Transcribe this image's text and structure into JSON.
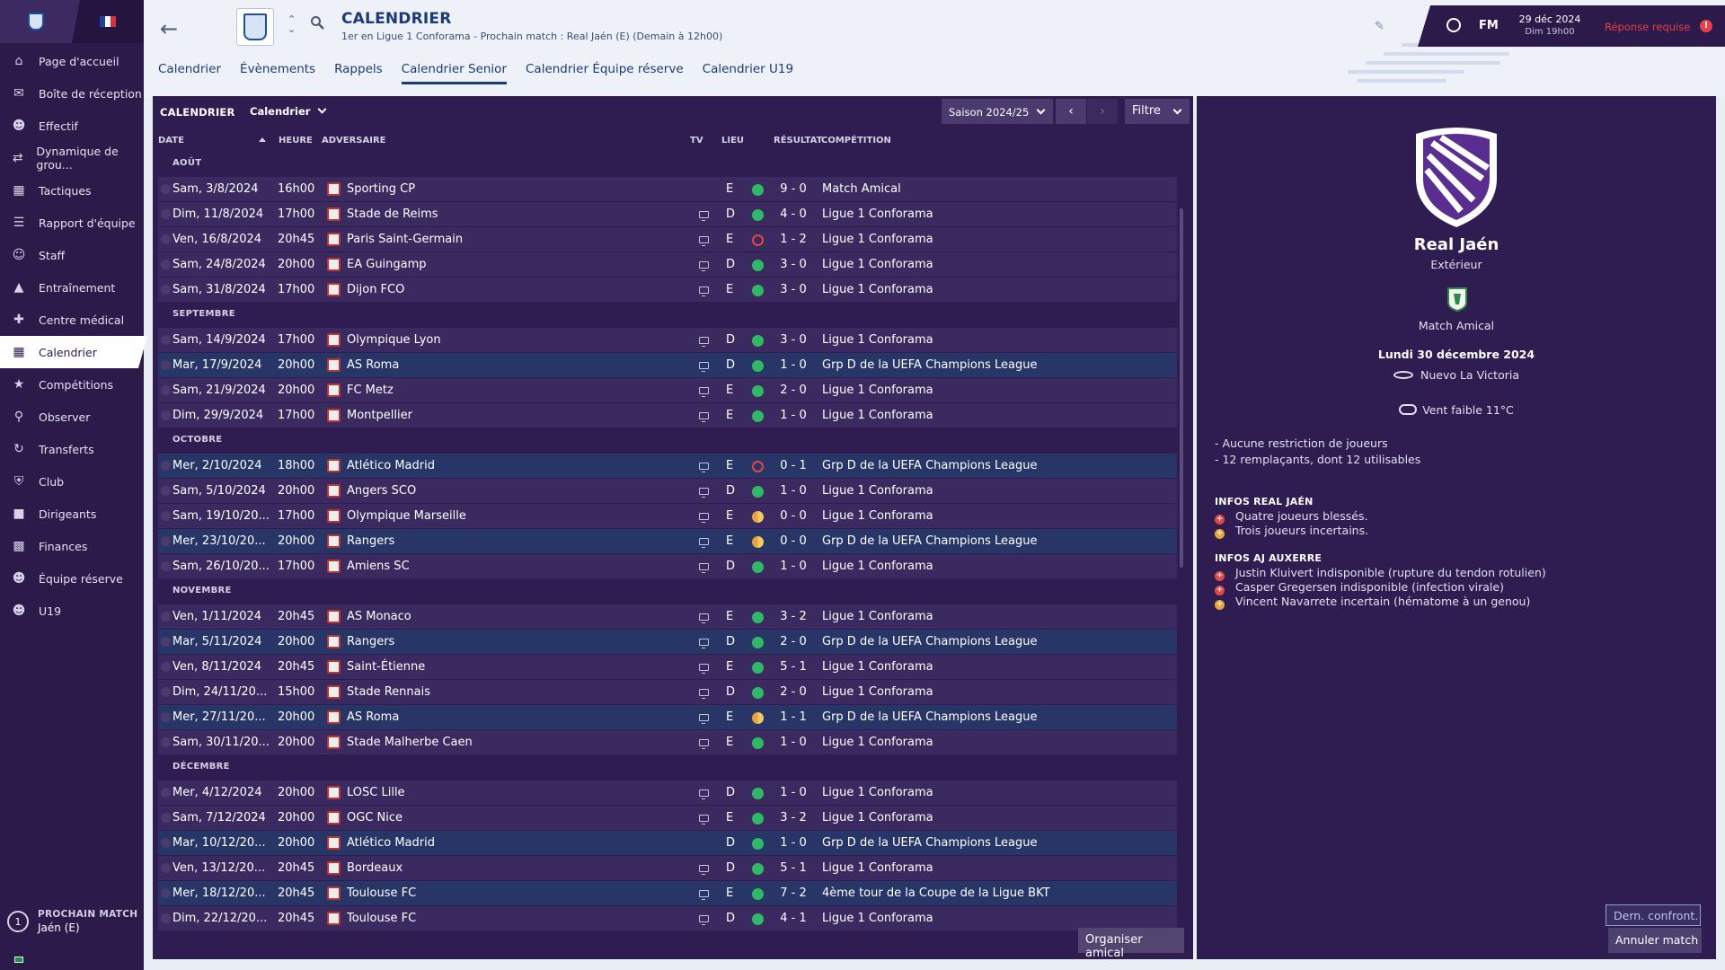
{
  "sidebar": {
    "items": [
      {
        "label": "Page d'accueil",
        "icon": "home-icon"
      },
      {
        "label": "Boîte de réception",
        "icon": "inbox-icon"
      },
      {
        "label": "Effectif",
        "icon": "players-icon"
      },
      {
        "label": "Dynamique de grou...",
        "icon": "dynamics-icon"
      },
      {
        "label": "Tactiques",
        "icon": "tactics-icon"
      },
      {
        "label": "Rapport d'équipe",
        "icon": "report-icon"
      },
      {
        "label": "Staff",
        "icon": "staff-icon"
      },
      {
        "label": "Entraînement",
        "icon": "training-icon"
      },
      {
        "label": "Centre médical",
        "icon": "medical-icon"
      },
      {
        "label": "Calendrier",
        "icon": "calendar-icon",
        "active": true
      },
      {
        "label": "Compétitions",
        "icon": "trophy-icon"
      },
      {
        "label": "Observer",
        "icon": "scout-icon"
      },
      {
        "label": "Transferts",
        "icon": "transfer-icon"
      },
      {
        "label": "Club",
        "icon": "club-icon"
      },
      {
        "label": "Dirigeants",
        "icon": "board-icon"
      },
      {
        "label": "Finances",
        "icon": "finances-icon"
      },
      {
        "label": "Équipe réserve",
        "icon": "reserve-icon"
      },
      {
        "label": "U19",
        "icon": "u19-icon"
      }
    ],
    "next_match": {
      "label": "PROCHAIN MATCH",
      "opponent": "Jaén (E)",
      "ring": "1"
    }
  },
  "header": {
    "title": "CALENDRIER",
    "subtitle": "1er en Ligue 1 Conforama - Prochain match : Real Jaén (E) (Demain à 12h00)",
    "brand": "FM",
    "date": "29 déc 2024",
    "time": "Dim 19h00",
    "response": "Réponse requise",
    "alert": "!"
  },
  "tabs": [
    "Calendrier",
    "Évènements",
    "Rappels",
    "Calendrier Senior",
    "Calendrier Équipe réserve",
    "Calendrier U19"
  ],
  "active_tab": 3,
  "fixtures_panel": {
    "title": "CALENDRIER",
    "view": "Calendrier",
    "season": "Saison 2024/25",
    "filter": "Filtre",
    "columns": {
      "date": "DATE",
      "time": "HEURE",
      "opponent": "ADVERSAIRE",
      "tv": "TV",
      "venue": "LIEU",
      "result": "RÉSULTAT",
      "competition": "COMPÉTITION"
    },
    "organize_button": "Organiser amical",
    "months": [
      {
        "name": "AOÛT",
        "fixtures": [
          {
            "date": "Sam, 3/8/2024",
            "time": "16h00",
            "opponent": "Sporting CP",
            "tv": false,
            "venue": "E",
            "outcome": "w",
            "score": "9 - 0",
            "competition": "Match Amical",
            "hl": false
          },
          {
            "date": "Dim, 11/8/2024",
            "time": "17h00",
            "opponent": "Stade de Reims",
            "tv": true,
            "venue": "D",
            "outcome": "w",
            "score": "4 - 0",
            "competition": "Ligue 1 Conforama",
            "hl": false
          },
          {
            "date": "Ven, 16/8/2024",
            "time": "20h45",
            "opponent": "Paris Saint-Germain",
            "tv": true,
            "venue": "E",
            "outcome": "l",
            "score": "1 - 2",
            "competition": "Ligue 1 Conforama",
            "hl": false
          },
          {
            "date": "Sam, 24/8/2024",
            "time": "20h00",
            "opponent": "EA Guingamp",
            "tv": true,
            "venue": "D",
            "outcome": "w",
            "score": "3 - 0",
            "competition": "Ligue 1 Conforama",
            "hl": false
          },
          {
            "date": "Sam, 31/8/2024",
            "time": "17h00",
            "opponent": "Dijon FCO",
            "tv": true,
            "venue": "E",
            "outcome": "w",
            "score": "3 - 0",
            "competition": "Ligue 1 Conforama",
            "hl": false
          }
        ]
      },
      {
        "name": "SEPTEMBRE",
        "fixtures": [
          {
            "date": "Sam, 14/9/2024",
            "time": "17h00",
            "opponent": "Olympique Lyon",
            "tv": true,
            "venue": "D",
            "outcome": "w",
            "score": "3 - 0",
            "competition": "Ligue 1 Conforama",
            "hl": false
          },
          {
            "date": "Mar, 17/9/2024",
            "time": "20h00",
            "opponent": "AS Roma",
            "tv": true,
            "venue": "D",
            "outcome": "w",
            "score": "1 - 0",
            "competition": "Grp D de la UEFA Champions League",
            "hl": true
          },
          {
            "date": "Sam, 21/9/2024",
            "time": "20h00",
            "opponent": "FC Metz",
            "tv": true,
            "venue": "E",
            "outcome": "w",
            "score": "2 - 0",
            "competition": "Ligue 1 Conforama",
            "hl": false
          },
          {
            "date": "Dim, 29/9/2024",
            "time": "17h00",
            "opponent": "Montpellier",
            "tv": true,
            "venue": "E",
            "outcome": "w",
            "score": "1 - 0",
            "competition": "Ligue 1 Conforama",
            "hl": false
          }
        ]
      },
      {
        "name": "OCTOBRE",
        "fixtures": [
          {
            "date": "Mer, 2/10/2024",
            "time": "18h00",
            "opponent": "Atlético Madrid",
            "tv": true,
            "venue": "E",
            "outcome": "l",
            "score": "0 - 1",
            "competition": "Grp D de la UEFA Champions League",
            "hl": true
          },
          {
            "date": "Sam, 5/10/2024",
            "time": "20h00",
            "opponent": "Angers SCO",
            "tv": true,
            "venue": "D",
            "outcome": "w",
            "score": "1 - 0",
            "competition": "Ligue 1 Conforama",
            "hl": false
          },
          {
            "date": "Sam, 19/10/20...",
            "time": "17h00",
            "opponent": "Olympique Marseille",
            "tv": true,
            "venue": "E",
            "outcome": "dr",
            "score": "0 - 0",
            "competition": "Ligue 1 Conforama",
            "hl": false
          },
          {
            "date": "Mer, 23/10/20...",
            "time": "20h00",
            "opponent": "Rangers",
            "tv": true,
            "venue": "E",
            "outcome": "dr",
            "score": "0 - 0",
            "competition": "Grp D de la UEFA Champions League",
            "hl": true
          },
          {
            "date": "Sam, 26/10/20...",
            "time": "17h00",
            "opponent": "Amiens SC",
            "tv": true,
            "venue": "D",
            "outcome": "w",
            "score": "1 - 0",
            "competition": "Ligue 1 Conforama",
            "hl": false
          }
        ]
      },
      {
        "name": "NOVEMBRE",
        "fixtures": [
          {
            "date": "Ven, 1/11/2024",
            "time": "20h45",
            "opponent": "AS Monaco",
            "tv": true,
            "venue": "E",
            "outcome": "w",
            "score": "3 - 2",
            "competition": "Ligue 1 Conforama",
            "hl": false
          },
          {
            "date": "Mar, 5/11/2024",
            "time": "20h00",
            "opponent": "Rangers",
            "tv": true,
            "venue": "D",
            "outcome": "w",
            "score": "2 - 0",
            "competition": "Grp D de la UEFA Champions League",
            "hl": true
          },
          {
            "date": "Ven, 8/11/2024",
            "time": "20h45",
            "opponent": "Saint-Étienne",
            "tv": true,
            "venue": "E",
            "outcome": "w",
            "score": "5 - 1",
            "competition": "Ligue 1 Conforama",
            "hl": false
          },
          {
            "date": "Dim, 24/11/20...",
            "time": "15h00",
            "opponent": "Stade Rennais",
            "tv": true,
            "venue": "D",
            "outcome": "w",
            "score": "2 - 0",
            "competition": "Ligue 1 Conforama",
            "hl": false
          },
          {
            "date": "Mer, 27/11/20...",
            "time": "20h00",
            "opponent": "AS Roma",
            "tv": true,
            "venue": "E",
            "outcome": "dr",
            "score": "1 - 1",
            "competition": "Grp D de la UEFA Champions League",
            "hl": true
          },
          {
            "date": "Sam, 30/11/20...",
            "time": "20h00",
            "opponent": "Stade Malherbe Caen",
            "tv": true,
            "venue": "E",
            "outcome": "w",
            "score": "1 - 0",
            "competition": "Ligue 1 Conforama",
            "hl": false
          }
        ]
      },
      {
        "name": "DÉCEMBRE",
        "fixtures": [
          {
            "date": "Mer, 4/12/2024",
            "time": "20h00",
            "opponent": "LOSC Lille",
            "tv": true,
            "venue": "D",
            "outcome": "w",
            "score": "1 - 0",
            "competition": "Ligue 1 Conforama",
            "hl": false
          },
          {
            "date": "Sam, 7/12/2024",
            "time": "20h00",
            "opponent": "OGC Nice",
            "tv": true,
            "venue": "E",
            "outcome": "w",
            "score": "3 - 2",
            "competition": "Ligue 1 Conforama",
            "hl": false
          },
          {
            "date": "Mar, 10/12/20...",
            "time": "20h00",
            "opponent": "Atlético Madrid",
            "tv": false,
            "venue": "D",
            "outcome": "w",
            "score": "1 - 0",
            "competition": "Grp D de la UEFA Champions League",
            "hl": true
          },
          {
            "date": "Ven, 13/12/20...",
            "time": "20h45",
            "opponent": "Bordeaux",
            "tv": true,
            "venue": "D",
            "outcome": "w",
            "score": "5 - 1",
            "competition": "Ligue 1 Conforama",
            "hl": false
          },
          {
            "date": "Mer, 18/12/20...",
            "time": "20h45",
            "opponent": "Toulouse FC",
            "tv": true,
            "venue": "E",
            "outcome": "w",
            "score": "7 - 2",
            "competition": "4ème tour de la Coupe de la Ligue BKT",
            "hl": true
          },
          {
            "date": "Dim, 22/12/20...",
            "time": "20h45",
            "opponent": "Toulouse FC",
            "tv": true,
            "venue": "D",
            "outcome": "w",
            "score": "4 - 1",
            "competition": "Ligue 1 Conforama",
            "hl": false
          }
        ]
      }
    ]
  },
  "match_panel": {
    "opponent": "Real Jaén",
    "venue_type": "Extérieur",
    "competition": "Match Amical",
    "date": "Lundi 30 décembre 2024",
    "stadium": "Nuevo La Victoria",
    "weather": "Vent faible 11°C",
    "notes": [
      "- Aucune restriction de joueurs",
      "- 12 remplaçants, dont 12 utilisables"
    ],
    "opp_info_title": "INFOS REAL JAÉN",
    "opp_info": [
      {
        "text": "Quatre joueurs blessés.",
        "type": "red"
      },
      {
        "text": "Trois joueurs incertains.",
        "type": "amb"
      }
    ],
    "own_info_title": "INFOS AJ AUXERRE",
    "own_info": [
      {
        "text": "Justin Kluivert indisponible (rupture du tendon rotulien)",
        "type": "red"
      },
      {
        "text": "Casper Gregersen indisponible (infection virale)",
        "type": "red"
      },
      {
        "text": "Vincent Navarrete incertain (hématome à un genou)",
        "type": "amb"
      }
    ],
    "last_meeting_btn": "Dern. confront.",
    "cancel_btn": "Annuler match"
  },
  "colors": {
    "accent": "#2b1a4a",
    "win": "#2fb865",
    "loss": "#e04848",
    "draw": "#e8a33a",
    "title": "#1d3a78"
  }
}
